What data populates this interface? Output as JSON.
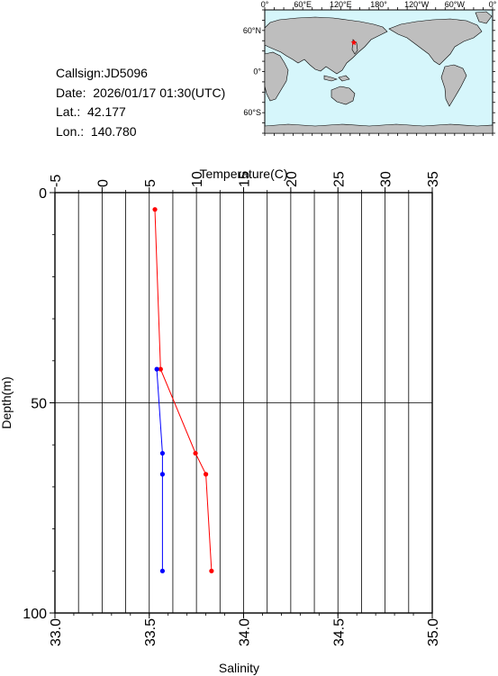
{
  "info": {
    "callsign": "Callsign:JD5096",
    "date": "Date:  2026/01/17 01:30(UTC)",
    "lat": "Lat.:  42.177",
    "lon": "Lon.:  140.780"
  },
  "map": {
    "lon_labels": [
      "0°",
      "60°E",
      "120°E",
      "180°",
      "120°W",
      "60°W",
      "0°"
    ],
    "lat_labels": [
      "60°N",
      "0°",
      "60°S"
    ],
    "ocean_color": "#d6f6fb",
    "land_color": "#bebebe",
    "marker_color": "#ff0000",
    "marker": {
      "lon": 140.78,
      "lat": 42.177
    }
  },
  "colors": {
    "temperature": "#ff0000",
    "salinity": "#0000ff"
  },
  "chart_data": {
    "type": "line",
    "title": "",
    "y": {
      "label": "Depth(m)",
      "lim": [
        100,
        0
      ],
      "ticks": [
        0,
        50,
        100
      ]
    },
    "x_top": {
      "label": "Temperature(C)",
      "lim": [
        -5,
        35
      ],
      "ticks": [
        -5,
        0,
        5,
        10,
        15,
        20,
        25,
        30,
        35
      ]
    },
    "x_bottom": {
      "label": "Salinity",
      "lim": [
        33.0,
        35.0
      ],
      "ticks": [
        "33.0",
        "33.5",
        "34.0",
        "34.5",
        "35.0"
      ]
    },
    "grid": true,
    "series": [
      {
        "name": "Temperature(C)",
        "axis": "top",
        "depth": [
          4,
          42,
          62,
          67,
          90
        ],
        "values": [
          5.6,
          6.2,
          9.9,
          11.0,
          11.6
        ]
      },
      {
        "name": "Salinity",
        "axis": "bottom",
        "depth": [
          42,
          62,
          67,
          90
        ],
        "values": [
          33.54,
          33.57,
          33.57,
          33.57
        ]
      }
    ]
  }
}
